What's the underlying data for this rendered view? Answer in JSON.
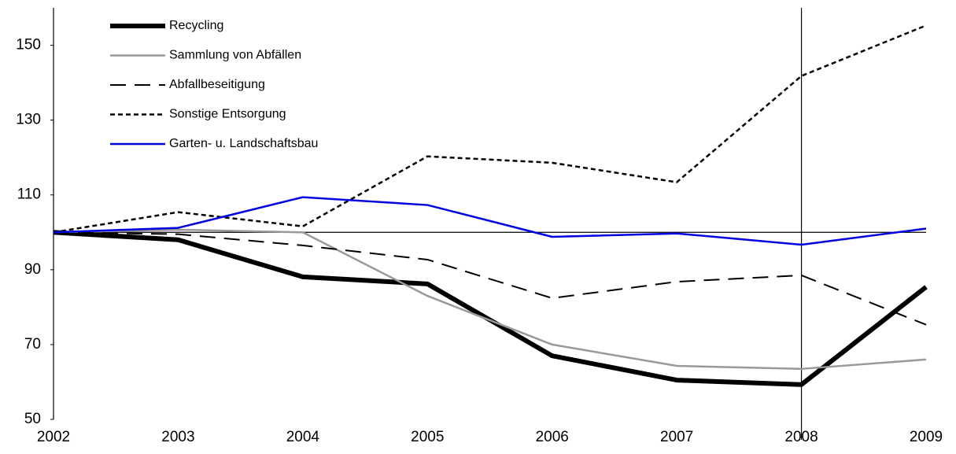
{
  "chart_data": {
    "type": "line",
    "categories": [
      "2002",
      "2003",
      "2004",
      "2005",
      "2006",
      "2007",
      "2008",
      "2009"
    ],
    "series": [
      {
        "name": "Recycling",
        "color": "#000000",
        "width": 6,
        "dash": "none",
        "values": [
          100,
          98,
          88.1,
          86.2,
          67,
          60.5,
          59.3,
          85.4
        ]
      },
      {
        "name": "Sammlung von Abfällen",
        "color": "#999999",
        "width": 2.5,
        "dash": "none",
        "values": [
          100,
          100.7,
          100,
          83,
          70,
          64.3,
          63.5,
          66
        ]
      },
      {
        "name": "Abfallbeseitigung",
        "color": "#000000",
        "width": 2,
        "dash": "20,11",
        "values": [
          100,
          99.5,
          96.5,
          92.7,
          82.4,
          86.8,
          88.5,
          75.3
        ]
      },
      {
        "name": "Sonstige Entsorgung",
        "color": "#000000",
        "width": 2.5,
        "dash": "6,4",
        "values": [
          100,
          105.4,
          101.6,
          120.3,
          118.6,
          113.4,
          141.8,
          155.3
        ]
      },
      {
        "name": "Garten- u. Landschaftsbau",
        "color": "#0000e0",
        "width": 2.5,
        "dash": "none",
        "values": [
          100,
          101.2,
          109.4,
          107.3,
          98.8,
          99.7,
          96.7,
          101
        ]
      }
    ],
    "ylim": [
      50,
      160
    ],
    "yticks": [
      50,
      70,
      90,
      110,
      130,
      150
    ],
    "hline": 100,
    "vline": "2008",
    "legend": "upper left"
  }
}
